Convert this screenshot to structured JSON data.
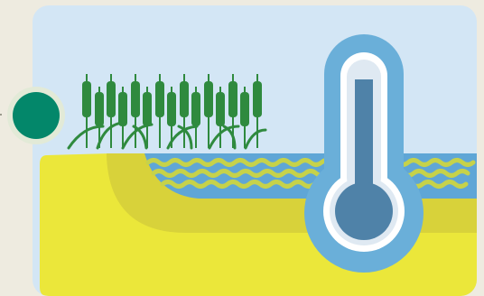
{
  "illustration": {
    "subject": "",
    "colors": {
      "page_background": "#eeebe0",
      "card_background": "#d3e6f5",
      "soil": "#ebe73a",
      "soil_shadow": "#d8d23a",
      "water": "#5fa6d6",
      "water_wave_alt": "#c6d24a",
      "cattail": "#2f8a3e",
      "thermometer_outer": "#6aafd9",
      "thermometer_inner": "#ffffff",
      "thermometer_fluid": "#4f82a8",
      "indicator_circle": "#03876a"
    },
    "icons": [
      "cattail-plants-icon",
      "wetland-water-icon",
      "thermometer-icon",
      "green-circle-icon"
    ],
    "thermometer_level": 0.8
  }
}
